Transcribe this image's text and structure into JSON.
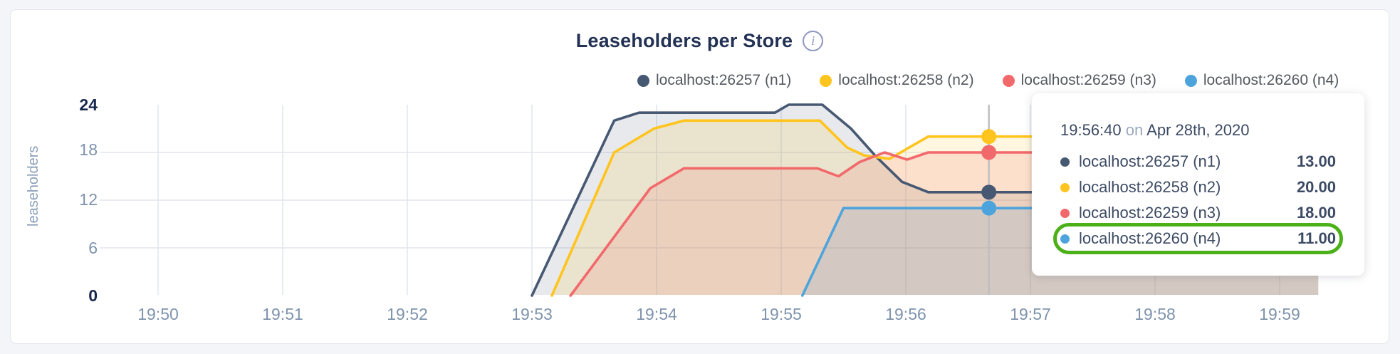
{
  "title": {
    "text": "Leaseholders per Store"
  },
  "icons": {
    "info": "i"
  },
  "legend": {
    "items": [
      {
        "label": "localhost:26257 (n1)",
        "color": "#475872"
      },
      {
        "label": "localhost:26258 (n2)",
        "color": "#FFC41D"
      },
      {
        "label": "localhost:26259 (n3)",
        "color": "#F2696C"
      },
      {
        "label": "localhost:26260 (n4)",
        "color": "#4DA4DC"
      }
    ]
  },
  "axes": {
    "y": {
      "title": "leaseholders",
      "ticks": [
        {
          "label": "24",
          "bold": true
        },
        {
          "label": "18",
          "bold": false
        },
        {
          "label": "12",
          "bold": false
        },
        {
          "label": "6",
          "bold": false
        },
        {
          "label": "0",
          "bold": true
        }
      ]
    },
    "x": {
      "ticks": [
        "19:50",
        "19:51",
        "19:52",
        "19:53",
        "19:54",
        "19:55",
        "19:56",
        "19:57",
        "19:58",
        "19:59"
      ]
    }
  },
  "tooltip": {
    "time": "19:56:40",
    "on": "on",
    "date": "Apr 28th, 2020",
    "highlight_color": "#4CB118",
    "rows": [
      {
        "label": "localhost:26257 (n1)",
        "value": "13.00",
        "color": "#475872",
        "highlighted": false
      },
      {
        "label": "localhost:26258 (n2)",
        "value": "20.00",
        "color": "#FFC41D",
        "highlighted": false
      },
      {
        "label": "localhost:26259 (n3)",
        "value": "18.00",
        "color": "#F2696C",
        "highlighted": false
      },
      {
        "label": "localhost:26260 (n4)",
        "value": "11.00",
        "color": "#4DA4DC",
        "highlighted": true
      }
    ]
  },
  "chart_data": {
    "type": "area",
    "title": "Leaseholders per Store",
    "xlabel": "",
    "ylabel": "leaseholders",
    "ylim": [
      0,
      24
    ],
    "y_gridlines": [
      6,
      12,
      18
    ],
    "grid_on": true,
    "grid_color": "#E2E6EE",
    "legend_position": "top",
    "x_ticks": [
      "19:50",
      "19:51",
      "19:52",
      "19:53",
      "19:54",
      "19:55",
      "19:56",
      "19:57",
      "19:58",
      "19:59"
    ],
    "x_unit": "minutes after 19:50",
    "series": [
      {
        "name": "localhost:26257 (n1)",
        "color": "#475872",
        "fill": "rgba(71,88,114,0.13)",
        "points": [
          [
            3.0,
            0
          ],
          [
            3.66,
            22
          ],
          [
            3.86,
            23
          ],
          [
            4.95,
            23
          ],
          [
            5.06,
            24
          ],
          [
            5.33,
            24
          ],
          [
            5.56,
            21
          ],
          [
            5.76,
            17.5
          ],
          [
            5.97,
            14.3
          ],
          [
            6.18,
            13
          ],
          [
            9.31,
            13
          ]
        ]
      },
      {
        "name": "localhost:26258 (n2)",
        "color": "#FFC41D",
        "fill": "rgba(255,196,29,0.14)",
        "points": [
          [
            3.16,
            0
          ],
          [
            3.66,
            18
          ],
          [
            3.98,
            21
          ],
          [
            4.22,
            22
          ],
          [
            5.31,
            22
          ],
          [
            5.53,
            18.6
          ],
          [
            5.67,
            17.6
          ],
          [
            5.87,
            17.2
          ],
          [
            6.18,
            20
          ],
          [
            9.31,
            20
          ]
        ]
      },
      {
        "name": "localhost:26259 (n3)",
        "color": "#F2696C",
        "fill": "rgba(242,105,108,0.16)",
        "points": [
          [
            3.31,
            0
          ],
          [
            3.95,
            13.5
          ],
          [
            4.22,
            16
          ],
          [
            5.29,
            16
          ],
          [
            5.46,
            15
          ],
          [
            5.63,
            16.8
          ],
          [
            5.83,
            18
          ],
          [
            6.01,
            17.1
          ],
          [
            6.18,
            18
          ],
          [
            9.31,
            18
          ]
        ]
      },
      {
        "name": "localhost:26260 (n4)",
        "color": "#4DA4DC",
        "fill": "rgba(77,164,220,0.14)",
        "points": [
          [
            5.17,
            0
          ],
          [
            5.5,
            11
          ],
          [
            9.31,
            11
          ]
        ]
      }
    ],
    "hover": {
      "t": 6.6667,
      "time_label": "19:56:40 on Apr 28th, 2020",
      "line_color": "#BFBFBF",
      "values": [
        13,
        20,
        18,
        11
      ]
    }
  }
}
